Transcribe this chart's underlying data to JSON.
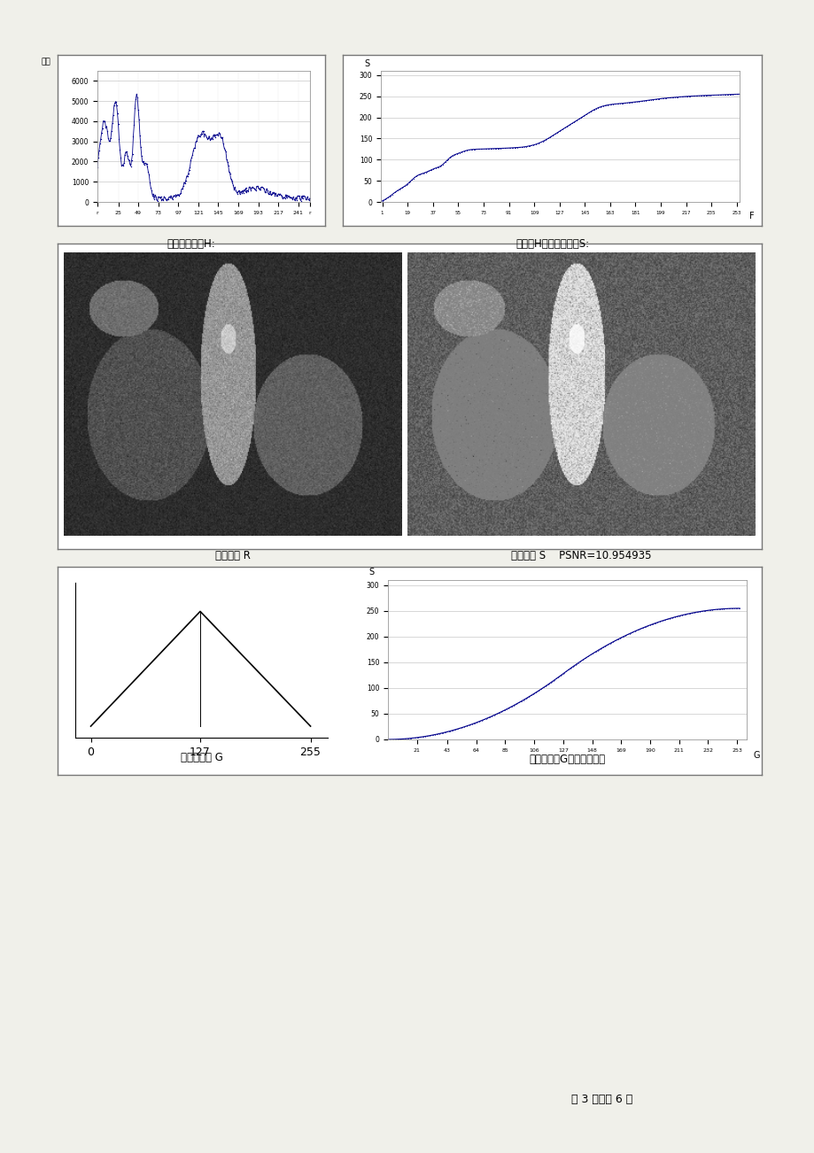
{
  "page_bg": "#f0f0ea",
  "panel_bg": "#ffffff",
  "border_color": "#777777",
  "line_color": "#00008B",
  "grid_color": "#c8c8c8",
  "hist_ylabel": "计数",
  "hist_yticks": [
    0,
    1000,
    2000,
    3000,
    4000,
    5000,
    6000
  ],
  "hist_xtick_vals": [
    0,
    25,
    49,
    73,
    97,
    121,
    145,
    169,
    193,
    217,
    241,
    255
  ],
  "hist_xtick_labels": [
    "r",
    "25",
    "49",
    "73",
    "97",
    "121",
    "145",
    "169",
    "193",
    "217",
    "241",
    "r"
  ],
  "cumhist_s_label": "S",
  "cumhist_f_label": "F",
  "cumhist_yticks": [
    0,
    50,
    100,
    150,
    200,
    250,
    300
  ],
  "cumhist_xtick_vals": [
    1,
    19,
    37,
    55,
    73,
    91,
    109,
    127,
    145,
    163,
    181,
    199,
    217,
    235,
    253
  ],
  "cumhist_xtick_labels": [
    "1",
    "19",
    "37",
    "55",
    "73",
    "91",
    "109",
    "127",
    "145",
    "163",
    "181",
    "199",
    "217",
    "235",
    "253"
  ],
  "label_hist": "原图象直方图H:",
  "label_cumhist": "直方图H的均衡直方图S:",
  "label_orig_img": "原始图象 R",
  "label_eq_img": "均衡图象 S    PSNR=10.954935",
  "label_target_tri": "目标直方图 G",
  "label_target_cum": "目标直方图G的均衡直方图",
  "target_cum_s_label": "S",
  "target_cum_g_label": "G",
  "target_cum_yticks": [
    0,
    50,
    100,
    150,
    200,
    250,
    300
  ],
  "target_cum_xtick_vals": [
    21,
    43,
    64,
    85,
    106,
    127,
    148,
    169,
    190,
    211,
    232,
    253
  ],
  "target_cum_xtick_labels": [
    "21",
    "43",
    "64",
    "85",
    "106",
    "127",
    "148",
    "169",
    "190",
    "211",
    "232",
    "253"
  ],
  "footer": "第 3 页，共 6 页"
}
